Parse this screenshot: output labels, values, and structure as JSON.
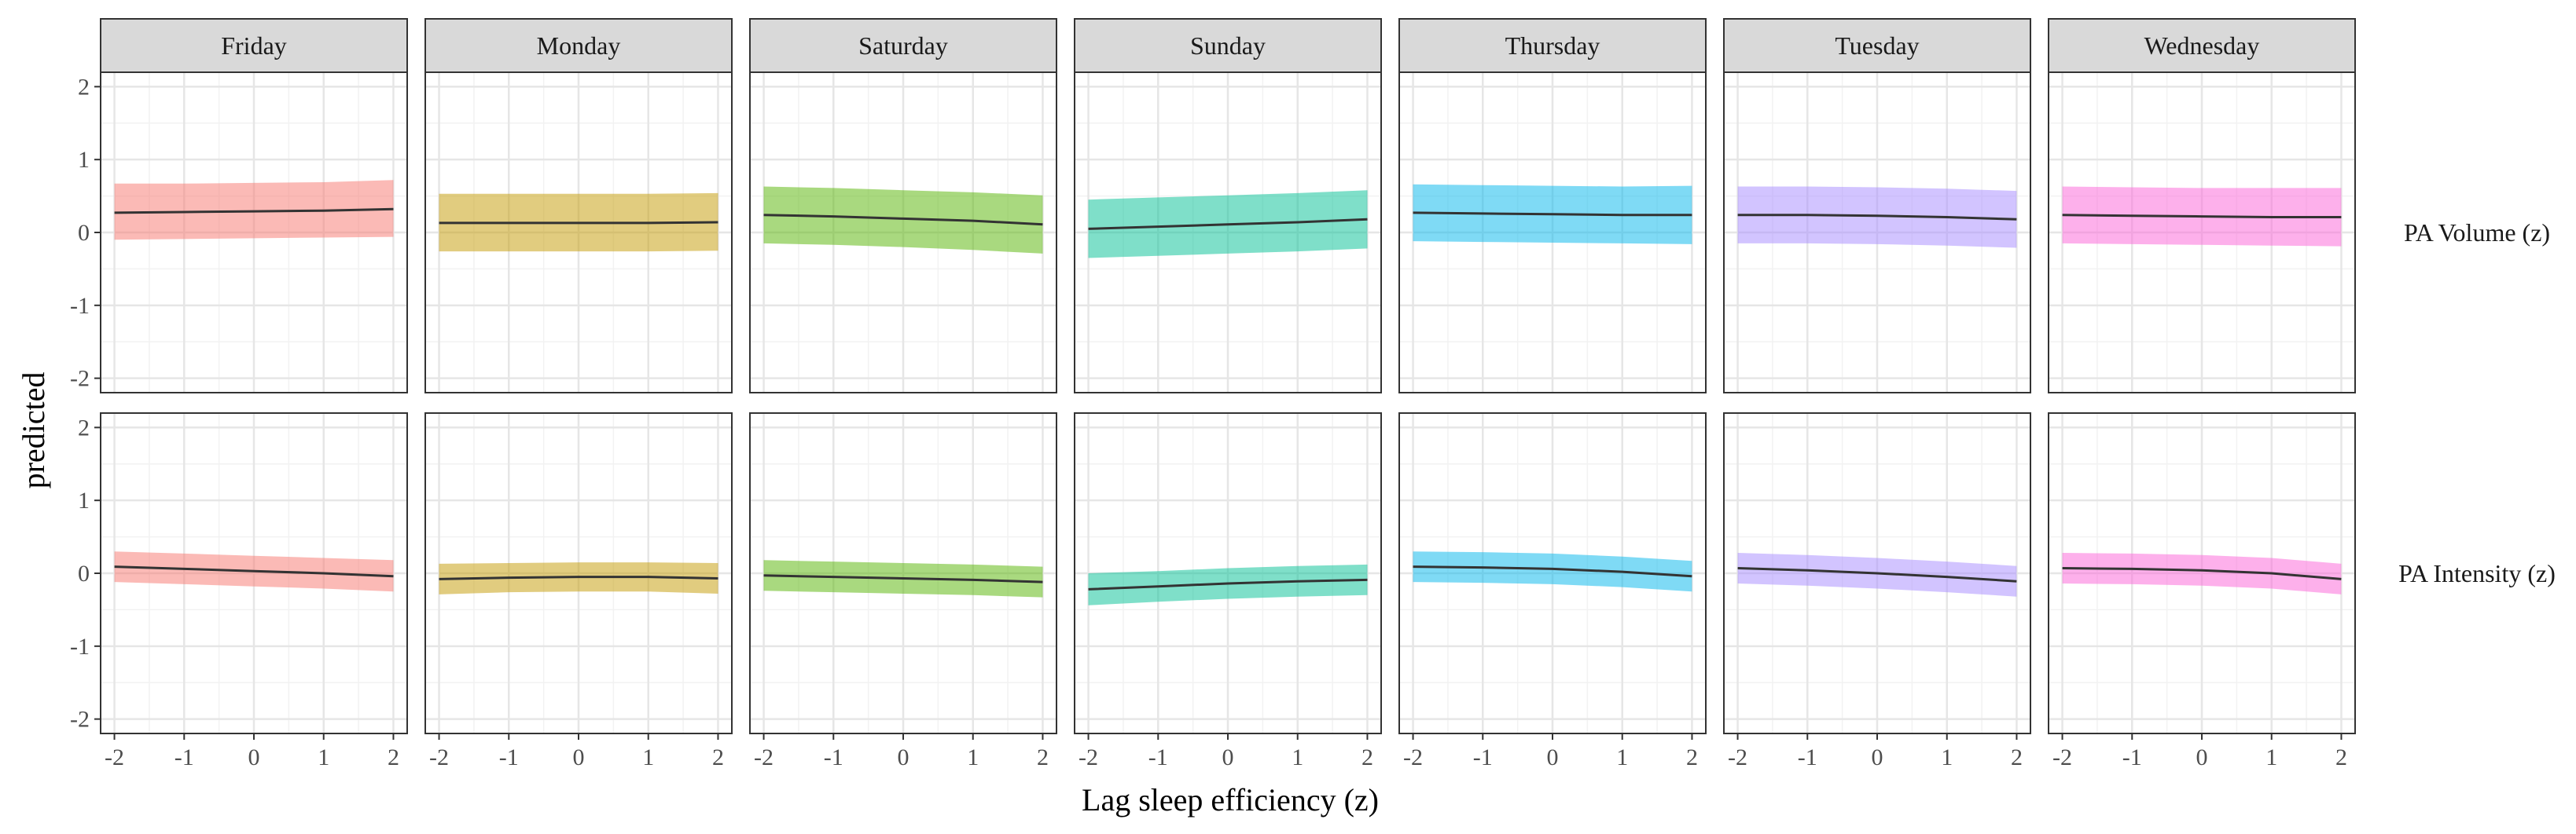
{
  "chart_data": {
    "type": "line",
    "xlabel": "Lag sleep efficiency (z)",
    "ylabel": "predicted",
    "xlim": [
      -2,
      2
    ],
    "ylim": [
      -2,
      2
    ],
    "x_ticks": [
      -2,
      -1,
      0,
      1,
      2
    ],
    "y_ticks": [
      -2,
      -1,
      0,
      1,
      2
    ],
    "grid": true,
    "facet_columns": [
      "Friday",
      "Monday",
      "Saturday",
      "Sunday",
      "Thursday",
      "Tuesday",
      "Wednesday"
    ],
    "facet_rows": [
      "PA Volume (z)",
      "PA Intensity (z)"
    ],
    "colors": {
      "Friday": "#F8766D",
      "Monday": "#C49A00",
      "Saturday": "#53B400",
      "Sunday": "#00C094",
      "Thursday": "#00B6EB",
      "Tuesday": "#A58AFF",
      "Wednesday": "#FB61D7"
    },
    "line_color": "#333333",
    "x": [
      -2,
      -1,
      0,
      1,
      2
    ],
    "panels": [
      {
        "row": "PA Volume (z)",
        "column": "Friday",
        "predicted": [
          0.27,
          0.28,
          0.29,
          0.3,
          0.32
        ],
        "lower": [
          -0.1,
          -0.09,
          -0.08,
          -0.07,
          -0.06
        ],
        "upper": [
          0.67,
          0.67,
          0.68,
          0.69,
          0.72
        ]
      },
      {
        "row": "PA Volume (z)",
        "column": "Monday",
        "predicted": [
          0.13,
          0.13,
          0.13,
          0.13,
          0.14
        ],
        "lower": [
          -0.26,
          -0.26,
          -0.26,
          -0.26,
          -0.25
        ],
        "upper": [
          0.53,
          0.53,
          0.53,
          0.53,
          0.54
        ]
      },
      {
        "row": "PA Volume (z)",
        "column": "Saturday",
        "predicted": [
          0.24,
          0.22,
          0.19,
          0.16,
          0.11
        ],
        "lower": [
          -0.15,
          -0.17,
          -0.2,
          -0.24,
          -0.29
        ],
        "upper": [
          0.63,
          0.61,
          0.58,
          0.55,
          0.51
        ]
      },
      {
        "row": "PA Volume (z)",
        "column": "Sunday",
        "predicted": [
          0.05,
          0.08,
          0.11,
          0.14,
          0.18
        ],
        "lower": [
          -0.35,
          -0.32,
          -0.29,
          -0.26,
          -0.22
        ],
        "upper": [
          0.45,
          0.48,
          0.51,
          0.54,
          0.58
        ]
      },
      {
        "row": "PA Volume (z)",
        "column": "Thursday",
        "predicted": [
          0.27,
          0.26,
          0.25,
          0.24,
          0.24
        ],
        "lower": [
          -0.12,
          -0.13,
          -0.14,
          -0.15,
          -0.16
        ],
        "upper": [
          0.66,
          0.65,
          0.64,
          0.63,
          0.64
        ]
      },
      {
        "row": "PA Volume (z)",
        "column": "Tuesday",
        "predicted": [
          0.24,
          0.24,
          0.23,
          0.21,
          0.18
        ],
        "lower": [
          -0.15,
          -0.15,
          -0.16,
          -0.18,
          -0.21
        ],
        "upper": [
          0.63,
          0.63,
          0.62,
          0.6,
          0.57
        ]
      },
      {
        "row": "PA Volume (z)",
        "column": "Wednesday",
        "predicted": [
          0.24,
          0.23,
          0.22,
          0.21,
          0.21
        ],
        "lower": [
          -0.15,
          -0.16,
          -0.17,
          -0.18,
          -0.19
        ],
        "upper": [
          0.63,
          0.62,
          0.61,
          0.61,
          0.61
        ]
      },
      {
        "row": "PA Intensity (z)",
        "column": "Friday",
        "predicted": [
          0.09,
          0.06,
          0.03,
          0.0,
          -0.04
        ],
        "lower": [
          -0.12,
          -0.15,
          -0.18,
          -0.21,
          -0.25
        ],
        "upper": [
          0.3,
          0.27,
          0.24,
          0.21,
          0.18
        ]
      },
      {
        "row": "PA Intensity (z)",
        "column": "Monday",
        "predicted": [
          -0.08,
          -0.06,
          -0.05,
          -0.05,
          -0.07
        ],
        "lower": [
          -0.29,
          -0.26,
          -0.25,
          -0.25,
          -0.28
        ],
        "upper": [
          0.13,
          0.14,
          0.15,
          0.15,
          0.14
        ]
      },
      {
        "row": "PA Intensity (z)",
        "column": "Saturday",
        "predicted": [
          -0.03,
          -0.05,
          -0.07,
          -0.09,
          -0.12
        ],
        "lower": [
          -0.24,
          -0.26,
          -0.28,
          -0.3,
          -0.33
        ],
        "upper": [
          0.18,
          0.16,
          0.14,
          0.12,
          0.09
        ]
      },
      {
        "row": "PA Intensity (z)",
        "column": "Sunday",
        "predicted": [
          -0.22,
          -0.18,
          -0.14,
          -0.11,
          -0.09
        ],
        "lower": [
          -0.44,
          -0.39,
          -0.35,
          -0.32,
          -0.3
        ],
        "upper": [
          0.0,
          0.03,
          0.07,
          0.1,
          0.12
        ]
      },
      {
        "row": "PA Intensity (z)",
        "column": "Thursday",
        "predicted": [
          0.09,
          0.08,
          0.06,
          0.02,
          -0.04
        ],
        "lower": [
          -0.12,
          -0.13,
          -0.15,
          -0.19,
          -0.25
        ],
        "upper": [
          0.3,
          0.29,
          0.27,
          0.23,
          0.17
        ]
      },
      {
        "row": "PA Intensity (z)",
        "column": "Tuesday",
        "predicted": [
          0.07,
          0.04,
          0.0,
          -0.05,
          -0.11
        ],
        "lower": [
          -0.14,
          -0.17,
          -0.21,
          -0.26,
          -0.32
        ],
        "upper": [
          0.28,
          0.25,
          0.21,
          0.16,
          0.1
        ]
      },
      {
        "row": "PA Intensity (z)",
        "column": "Wednesday",
        "predicted": [
          0.07,
          0.06,
          0.04,
          0.0,
          -0.08
        ],
        "lower": [
          -0.14,
          -0.15,
          -0.17,
          -0.21,
          -0.29
        ],
        "upper": [
          0.28,
          0.27,
          0.25,
          0.21,
          0.13
        ]
      }
    ]
  }
}
